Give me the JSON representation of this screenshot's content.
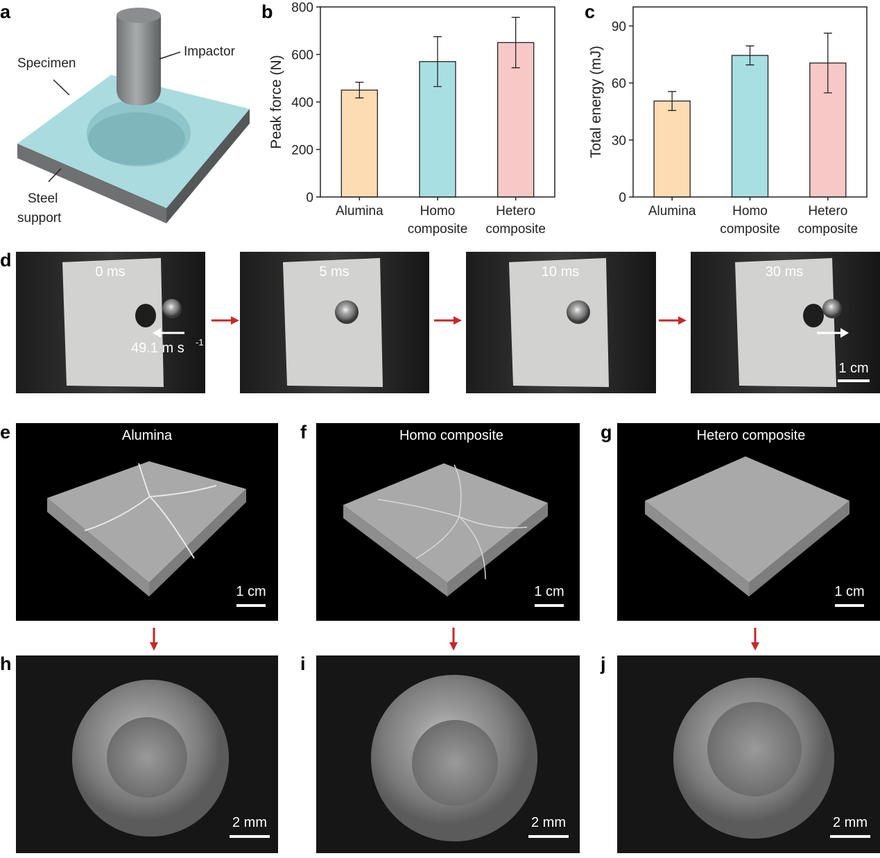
{
  "panel_labels": [
    "a",
    "b",
    "c",
    "d",
    "e",
    "f",
    "g",
    "h",
    "i",
    "j"
  ],
  "schematic": {
    "specimen": "Specimen",
    "impactor": "Impactor",
    "support_line1": "Steel",
    "support_line2": "support"
  },
  "chart_data": [
    {
      "type": "bar",
      "ylabel": "Peak force (N)",
      "categories": [
        "Alumina",
        "Homo composite",
        "Hetero composite"
      ],
      "values": [
        450,
        570,
        650
      ],
      "errors": [
        33,
        105,
        106
      ],
      "colors": [
        "#fddcb4",
        "#a8dfe3",
        "#f8c8c6"
      ],
      "ylim": [
        0,
        800
      ],
      "yticks": [
        0,
        200,
        400,
        600,
        800
      ]
    },
    {
      "type": "bar",
      "ylabel": "Total energy (mJ)",
      "categories": [
        "Alumina",
        "Homo composite",
        "Hetero composite"
      ],
      "values": [
        50.5,
        74.5,
        70.5
      ],
      "errors": [
        5,
        5,
        15.7
      ],
      "colors": [
        "#fddcb4",
        "#a8dfe3",
        "#f8c8c6"
      ],
      "ylim": [
        0,
        100
      ],
      "yticks": [
        0,
        30,
        60,
        90
      ]
    }
  ],
  "high_speed": {
    "times": [
      "0 ms",
      "5 ms",
      "10 ms",
      "30 ms"
    ],
    "velocity": "49.1 m s",
    "velocity_sup": "-1",
    "scale": "1 cm"
  },
  "specimens": {
    "titles": [
      "Alumina",
      "Homo composite",
      "Hetero composite"
    ],
    "scale": "1 cm"
  },
  "impactors": {
    "scale": "2 mm"
  }
}
